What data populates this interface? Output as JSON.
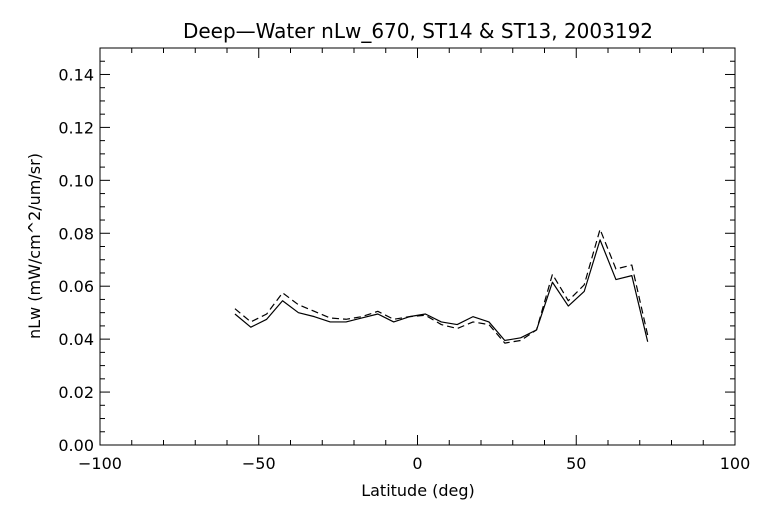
{
  "chart_data": {
    "type": "line",
    "title": "Deep—Water nLw_670, ST14 & ST13, 2003192",
    "xlabel": "Latitude (deg)",
    "ylabel": "nLw (mW/cm^2/um/sr)",
    "xlim": [
      -100,
      100
    ],
    "ylim": [
      0.0,
      0.15
    ],
    "xticks": [
      -100,
      -50,
      0,
      50,
      100
    ],
    "xtick_labels": [
      "−100",
      "−50",
      "0",
      "50",
      "100"
    ],
    "yticks": [
      0.0,
      0.02,
      0.04,
      0.06,
      0.08,
      0.1,
      0.12,
      0.14
    ],
    "ytick_labels": [
      "0.00",
      "0.02",
      "0.04",
      "0.06",
      "0.08",
      "0.10",
      "0.12",
      "0.14"
    ],
    "grid": false,
    "series": [
      {
        "style": "solid",
        "color": "#000000",
        "x": [
          -57.5,
          -52.5,
          -47.5,
          -42.5,
          -37.5,
          -32.5,
          -27.5,
          -22.5,
          -17.5,
          -12.5,
          -7.5,
          -2.5,
          2.5,
          7.5,
          12.5,
          17.5,
          22.5,
          27.5,
          32.5,
          37.5,
          42.5,
          47.5,
          52.5,
          57.5,
          62.5,
          67.5,
          72.5
        ],
        "values": [
          0.0495,
          0.0445,
          0.0475,
          0.0545,
          0.05,
          0.0485,
          0.0465,
          0.0465,
          0.048,
          0.0495,
          0.0465,
          0.0485,
          0.0495,
          0.0465,
          0.0455,
          0.0485,
          0.0465,
          0.0395,
          0.0405,
          0.0435,
          0.0615,
          0.0525,
          0.058,
          0.0775,
          0.0625,
          0.064,
          0.039
        ]
      },
      {
        "style": "dashed",
        "color": "#000000",
        "x": [
          -57.5,
          -52.5,
          -47.5,
          -42.5,
          -37.5,
          -32.5,
          -27.5,
          -22.5,
          -17.5,
          -12.5,
          -7.5,
          -2.5,
          2.5,
          7.5,
          12.5,
          17.5,
          22.5,
          27.5,
          32.5,
          37.5,
          42.5,
          47.5,
          52.5,
          57.5,
          62.5,
          67.5,
          72.5
        ],
        "values": [
          0.0515,
          0.0465,
          0.0495,
          0.0575,
          0.053,
          0.0505,
          0.048,
          0.0475,
          0.0485,
          0.0505,
          0.0475,
          0.0485,
          0.049,
          0.0455,
          0.044,
          0.0465,
          0.0455,
          0.0385,
          0.0395,
          0.0435,
          0.0645,
          0.0545,
          0.0605,
          0.0815,
          0.0665,
          0.068,
          0.0415
        ]
      }
    ]
  }
}
